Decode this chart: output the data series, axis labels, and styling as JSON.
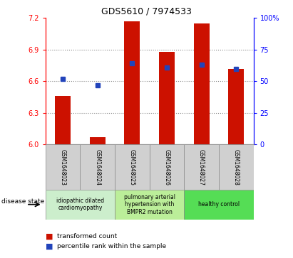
{
  "title": "GDS5610 / 7974533",
  "samples": [
    "GSM1648023",
    "GSM1648024",
    "GSM1648025",
    "GSM1648026",
    "GSM1648027",
    "GSM1648028"
  ],
  "red_values": [
    6.46,
    6.07,
    7.17,
    6.88,
    7.15,
    6.72
  ],
  "blue_values": [
    6.62,
    6.56,
    6.77,
    6.73,
    6.76,
    6.72
  ],
  "ymin": 6.0,
  "ymax": 7.2,
  "yticks_left": [
    6.0,
    6.3,
    6.6,
    6.9,
    7.2
  ],
  "yticks_right_vals": [
    0,
    25,
    50,
    75,
    100
  ],
  "yticks_right_labels": [
    "0",
    "25",
    "50",
    "75",
    "100%"
  ],
  "bar_color": "#cc1100",
  "dot_color": "#2244bb",
  "bar_width": 0.45,
  "dot_size": 5,
  "disease_groups": [
    {
      "label": "idiopathic dilated\ncardiomyopathy",
      "start": 0,
      "end": 1,
      "color": "#cceecc"
    },
    {
      "label": "pulmonary arterial\nhypertension with\nBMPR2 mutation",
      "start": 2,
      "end": 3,
      "color": "#bbee99"
    },
    {
      "label": "healthy control",
      "start": 4,
      "end": 5,
      "color": "#55dd55"
    }
  ],
  "legend_red_label": "transformed count",
  "legend_blue_label": "percentile rank within the sample",
  "disease_state_label": "disease state",
  "grid_color": "#888888",
  "sample_box_color": "#d0d0d0",
  "sample_box_edge": "#888888",
  "title_fontsize": 9,
  "tick_fontsize": 7,
  "sample_fontsize": 5.5,
  "legend_fontsize": 6.5,
  "disease_fontsize": 5.5
}
